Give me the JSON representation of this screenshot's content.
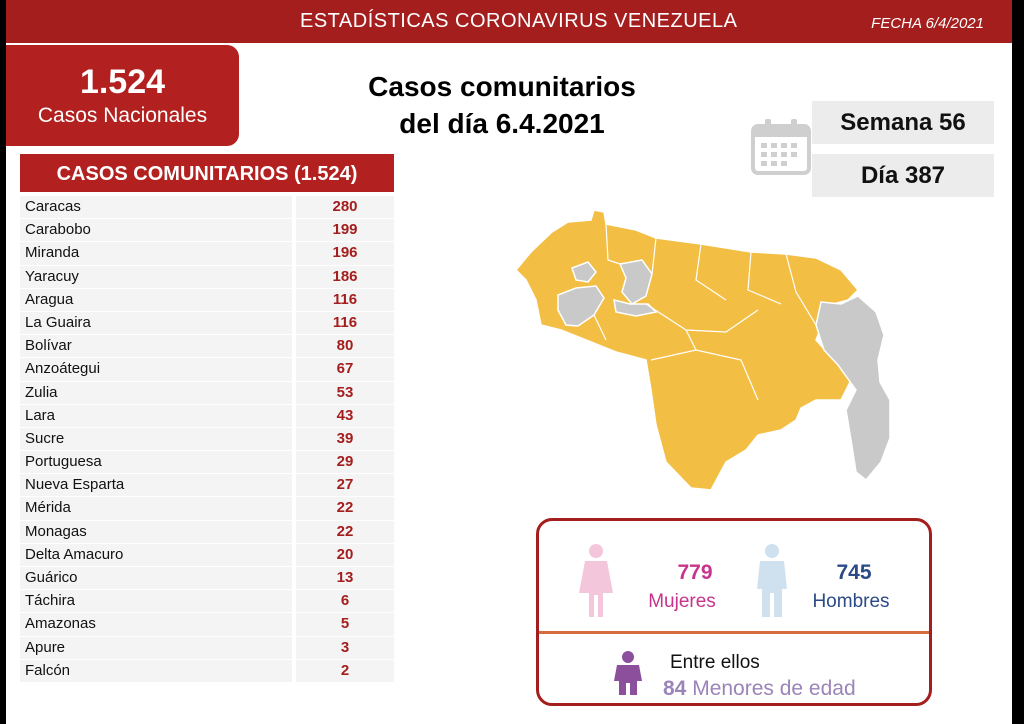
{
  "header": {
    "title": "ESTADÍSTICAS CORONAVIRUS VENEZUELA",
    "date": "FECHA 6/4/2021"
  },
  "national": {
    "number": "1.524",
    "label": "Casos Nacionales"
  },
  "headline": {
    "line1": "Casos comunitarios",
    "line2": "del día 6.4.2021"
  },
  "week": "Semana 56",
  "day": "Día 387",
  "table": {
    "title": "CASOS COMUNITARIOS (1.524)",
    "rows": [
      {
        "name": "Caracas",
        "value": "280"
      },
      {
        "name": "Carabobo",
        "value": "199"
      },
      {
        "name": "Miranda",
        "value": "196"
      },
      {
        "name": "Yaracuy",
        "value": "186"
      },
      {
        "name": "Aragua",
        "value": "116"
      },
      {
        "name": "La Guaira",
        "value": "116"
      },
      {
        "name": "Bolívar",
        "value": "80"
      },
      {
        "name": "Anzoátegui",
        "value": "67"
      },
      {
        "name": "Zulia",
        "value": "53"
      },
      {
        "name": "Lara",
        "value": "43"
      },
      {
        "name": "Sucre",
        "value": "39"
      },
      {
        "name": "Portuguesa",
        "value": "29"
      },
      {
        "name": "Nueva Esparta",
        "value": "27"
      },
      {
        "name": "Mérida",
        "value": "22"
      },
      {
        "name": "Monagas",
        "value": "22"
      },
      {
        "name": "Delta Amacuro",
        "value": "20"
      },
      {
        "name": "Guárico",
        "value": "13"
      },
      {
        "name": "Táchira",
        "value": "6"
      },
      {
        "name": "Amazonas",
        "value": "5"
      },
      {
        "name": "Apure",
        "value": "3"
      },
      {
        "name": "Falcón",
        "value": "2"
      }
    ]
  },
  "gender": {
    "women_count": "779",
    "women_label": "Mujeres",
    "men_count": "745",
    "men_label": "Hombres",
    "among": "Entre ellos",
    "minors_count": "84",
    "minors_label": "Menores de edad"
  },
  "icons": {
    "calendar": "calendar-icon",
    "woman": "woman-icon",
    "man": "man-icon",
    "child": "child-icon"
  },
  "colors": {
    "brand_red": "#a41e1e",
    "map_cases": "#f3be44",
    "map_none": "#c9c9c9",
    "women": "#c8338c",
    "men": "#2b4a86",
    "minors": "#9b84b8"
  }
}
